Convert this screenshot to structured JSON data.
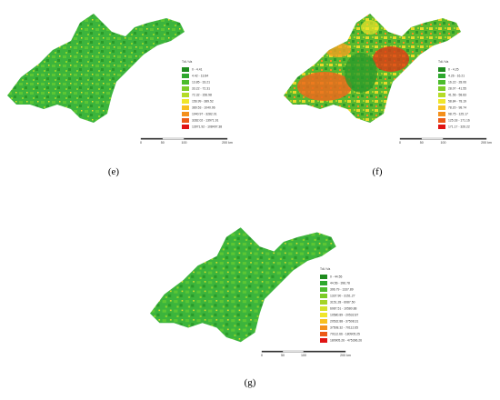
{
  "panels": [
    {
      "label": "(e)",
      "legend": {
        "title": "Tdi / t/a",
        "items": [
          {
            "label": "0 - 4.41",
            "color": "#1e8c1e"
          },
          {
            "label": "4.42 - 13.84",
            "color": "#2ea82e"
          },
          {
            "label": "13.85 - 33.21",
            "color": "#4cbc2c"
          },
          {
            "label": "33.22 - 72.31",
            "color": "#7ccc28"
          },
          {
            "label": "72.32 - 156.98",
            "color": "#b4dc28"
          },
          {
            "label": "156.99 - 389.52",
            "color": "#f0e62a"
          },
          {
            "label": "389.53 - 1040.96",
            "color": "#f8c020"
          },
          {
            "label": "1040.97 - 3282.01",
            "color": "#f4901c"
          },
          {
            "label": "3282.02 - 13971.91",
            "color": "#ec5a18"
          },
          {
            "label": "13971.92 - 108497.38",
            "color": "#e01414"
          }
        ]
      },
      "scale": [
        "0",
        "50",
        "100",
        "200 km"
      ]
    },
    {
      "label": "(f)",
      "legend": {
        "title": "Tdi / t/a",
        "items": [
          {
            "label": "0 - 4.25",
            "color": "#1e8c1e"
          },
          {
            "label": "4.26 - 16.21",
            "color": "#2ea82e"
          },
          {
            "label": "16.22 - 28.06",
            "color": "#4cbc2c"
          },
          {
            "label": "28.07 - 41.55",
            "color": "#7ccc28"
          },
          {
            "label": "41.56 - 58.83",
            "color": "#b4dc28"
          },
          {
            "label": "58.84 - 78.19",
            "color": "#f0e62a"
          },
          {
            "label": "78.20 - 98.74",
            "color": "#f8c020"
          },
          {
            "label": "98.75 - 125.17",
            "color": "#f4901c"
          },
          {
            "label": "125.18 - 171.16",
            "color": "#ec5a18"
          },
          {
            "label": "171.17 - 326.22",
            "color": "#e01414"
          }
        ]
      },
      "scale": [
        "0",
        "50",
        "100",
        "200 km"
      ]
    },
    {
      "label": "(g)",
      "legend": {
        "title": "Tdi / t/a",
        "items": [
          {
            "label": "0 - 44.55",
            "color": "#1e8c1e"
          },
          {
            "label": "44.56 - 396.78",
            "color": "#2ea82e"
          },
          {
            "label": "396.79 - 1337.89",
            "color": "#4cbc2c"
          },
          {
            "label": "1337.90 - 3151.27",
            "color": "#7ccc28"
          },
          {
            "label": "3151.28 - 6087.50",
            "color": "#a4d428"
          },
          {
            "label": "6087.51 - 10580.88",
            "color": "#d4e22a"
          },
          {
            "label": "10580.89 - 20532.87",
            "color": "#f0e62a"
          },
          {
            "label": "20532.88 - 37508.31",
            "color": "#f8c020"
          },
          {
            "label": "37508.32 - 70112.65",
            "color": "#f4901c"
          },
          {
            "label": "70112.66 - 180905.25",
            "color": "#ec5a18"
          },
          {
            "label": "180905.26 - 475396.26",
            "color": "#e01414"
          }
        ]
      },
      "scale": [
        "0",
        "50",
        "100",
        "200 km"
      ]
    }
  ]
}
